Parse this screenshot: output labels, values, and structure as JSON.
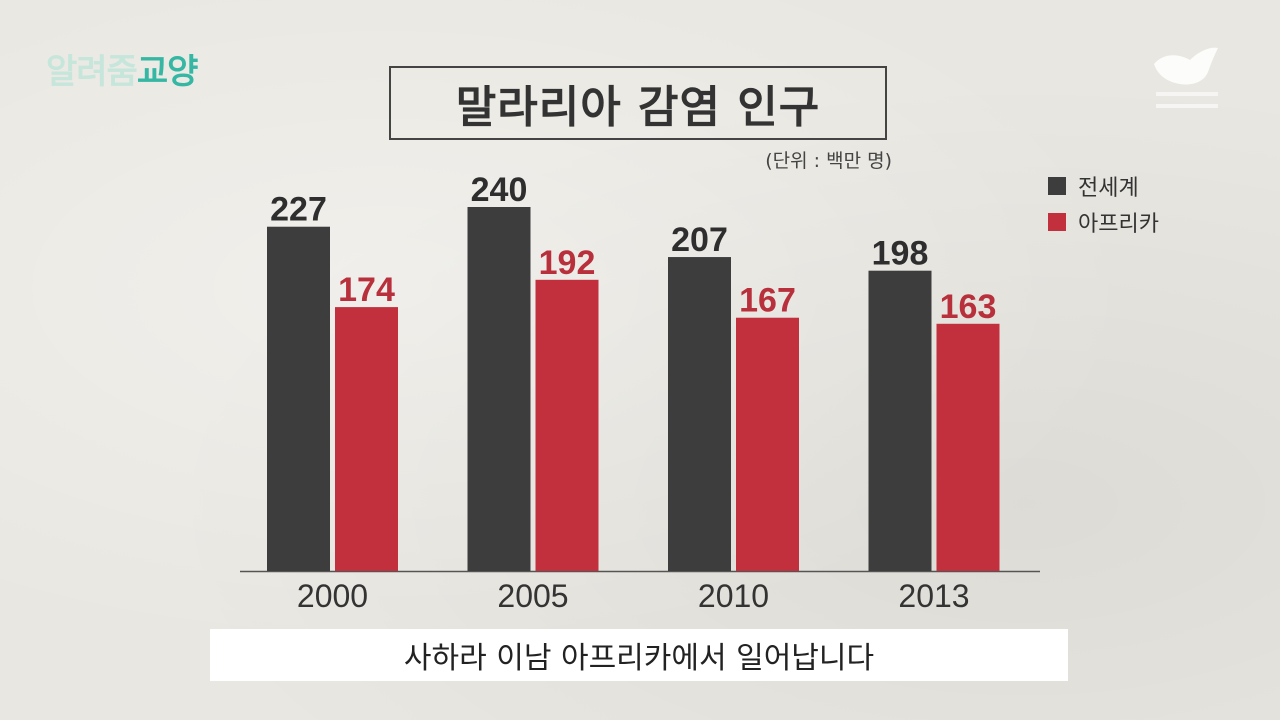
{
  "logo": {
    "part1": "알려줌",
    "part2": "교양"
  },
  "chart_data": {
    "type": "bar",
    "title": "말라리아 감염 인구",
    "unit_note": "(단위 : 백만 명)",
    "categories": [
      "2000",
      "2005",
      "2010",
      "2013"
    ],
    "series": [
      {
        "name": "전세계",
        "values": [
          227,
          240,
          207,
          198
        ],
        "color": "#3d3d3d",
        "label_color": "#2e2e2e"
      },
      {
        "name": "아프리카",
        "values": [
          174,
          192,
          167,
          163
        ],
        "color": "#c2303d",
        "label_color": "#b8303c"
      }
    ],
    "ylim": [
      0,
      240
    ],
    "grid": false,
    "legend_position": "top-right"
  },
  "subtitle": "사하라 이남 아프리카에서 일어납니다"
}
